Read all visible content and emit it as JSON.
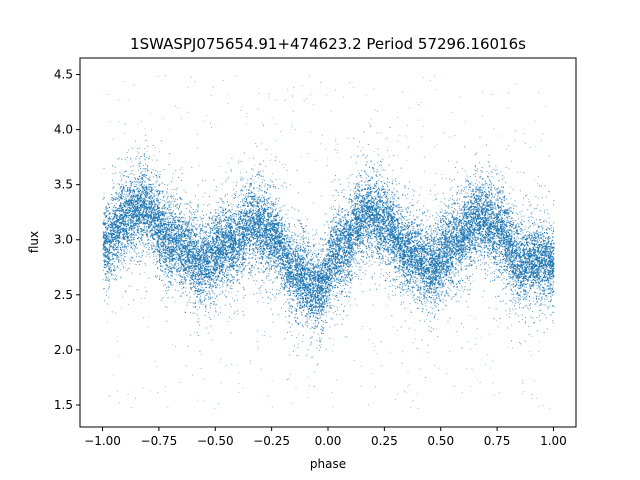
{
  "chart_data": {
    "type": "scatter",
    "title": "1SWASPJ075654.91+474623.2 Period 57296.16016s",
    "xlabel": "phase",
    "ylabel": "flux",
    "xlim": [
      -1.1,
      1.1
    ],
    "ylim": [
      1.3,
      4.65
    ],
    "xticks": [
      -1.0,
      -0.75,
      -0.5,
      -0.25,
      0.0,
      0.25,
      0.5,
      0.75,
      1.0
    ],
    "xtick_labels": [
      "−1.00",
      "−0.75",
      "−0.50",
      "−0.25",
      "0.00",
      "0.25",
      "0.50",
      "0.75",
      "1.00"
    ],
    "yticks": [
      1.5,
      2.0,
      2.5,
      3.0,
      3.5,
      4.0,
      4.5
    ],
    "ytick_labels": [
      "1.5",
      "2.0",
      "2.5",
      "3.0",
      "3.5",
      "4.0",
      "4.5"
    ],
    "grid": false,
    "point_color": "#1f77b4",
    "x_range": [
      -1.0,
      1.0
    ],
    "phase_curve": {
      "x": [
        -1.0,
        -0.9,
        -0.82,
        -0.7,
        -0.55,
        -0.45,
        -0.33,
        -0.25,
        -0.15,
        -0.05,
        0.05,
        0.17,
        0.25,
        0.35,
        0.45,
        0.55,
        0.67,
        0.75,
        0.85,
        1.0
      ],
      "y": [
        2.95,
        3.2,
        3.3,
        3.0,
        2.8,
        2.95,
        3.15,
        3.05,
        2.7,
        2.55,
        2.9,
        3.25,
        3.15,
        2.9,
        2.75,
        2.95,
        3.2,
        3.1,
        2.8,
        2.8
      ]
    },
    "scatter_sigma": 0.25,
    "outlier_range": [
      1.45,
      4.5
    ]
  }
}
